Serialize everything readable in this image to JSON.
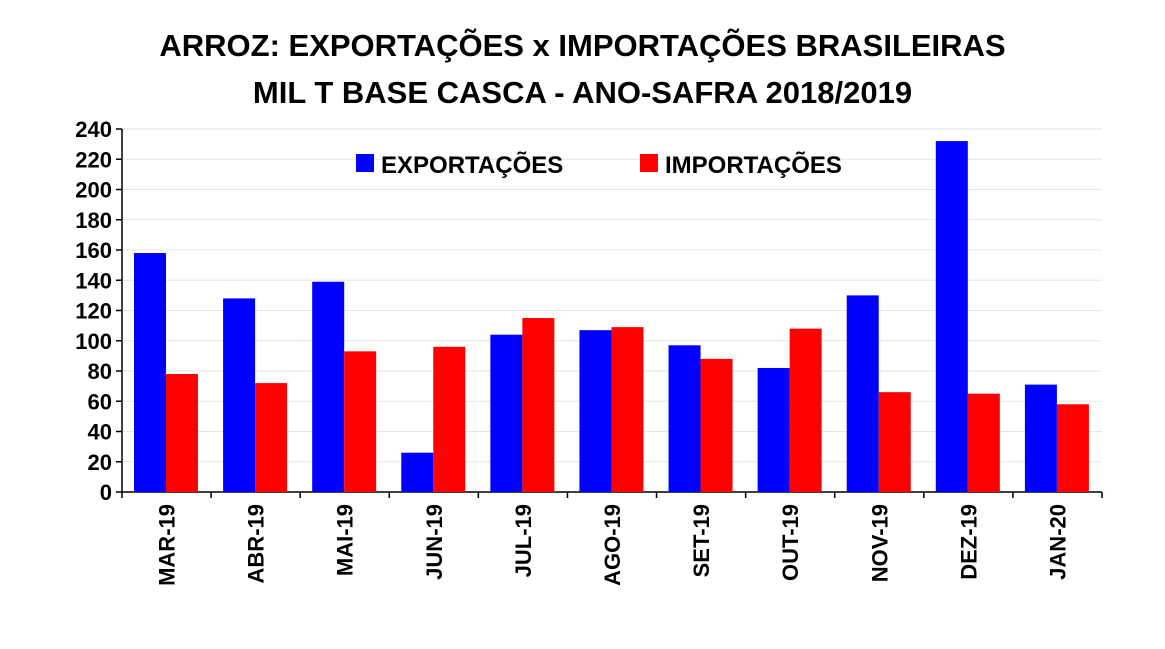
{
  "chart_data": {
    "type": "bar",
    "title": "ARROZ: EXPORTAÇÕES x IMPORTAÇÕES BRASILEIRAS",
    "subtitle": "MIL T BASE CASCA - ANO-SAFRA 2018/2019",
    "xlabel": "",
    "ylabel": "",
    "ylim": [
      0,
      240
    ],
    "yticks": [
      0,
      20,
      40,
      60,
      80,
      100,
      120,
      140,
      160,
      180,
      200,
      220,
      240
    ],
    "grid": true,
    "legend_position": "top-center",
    "categories": [
      "MAR-19",
      "ABR-19",
      "MAI-19",
      "JUN-19",
      "JUL-19",
      "AGO-19",
      "SET-19",
      "OUT-19",
      "NOV-19",
      "DEZ-19",
      "JAN-20"
    ],
    "series": [
      {
        "name": "EXPORTAÇÕES",
        "color": "#0000ff",
        "values": [
          158,
          128,
          139,
          26,
          104,
          107,
          97,
          82,
          130,
          232,
          71
        ]
      },
      {
        "name": "IMPORTAÇÕES",
        "color": "#ff0000",
        "values": [
          78,
          72,
          93,
          96,
          115,
          109,
          88,
          108,
          66,
          65,
          58
        ]
      }
    ]
  }
}
